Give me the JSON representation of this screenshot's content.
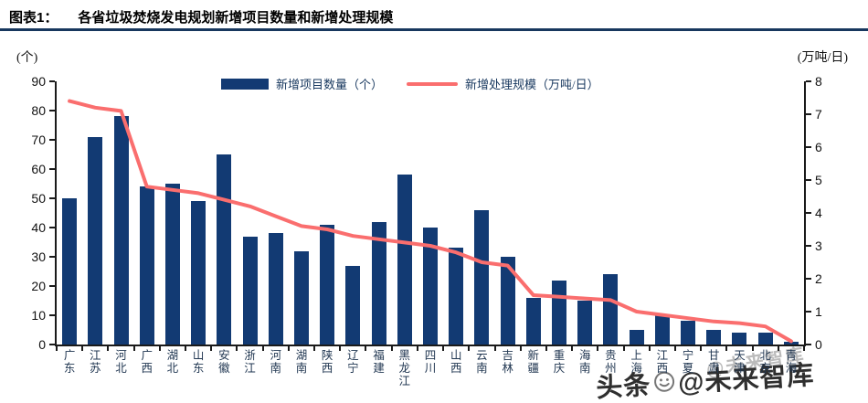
{
  "header": {
    "tag": "图表1：",
    "title": "各省垃圾焚烧发电规划新增项目数量和新增处理规模"
  },
  "axes": {
    "left_unit": "(个)",
    "right_unit": "(万吨/日)",
    "left_ticks": [
      0,
      10,
      20,
      30,
      40,
      50,
      60,
      70,
      80,
      90
    ],
    "right_ticks": [
      0,
      1,
      2,
      3,
      4,
      5,
      6,
      7,
      8
    ]
  },
  "legend": {
    "bar_label": "新增项目数量（个）",
    "line_label": "新增处理规模（万吨/日）"
  },
  "colors": {
    "bar": "#123a73",
    "line": "#fa6e6e",
    "navy_rule": "#17375e"
  },
  "watermark": {
    "ghost": "@未来智库",
    "main_left": "头条",
    "main_right": "@未来智库",
    "emoji": "smiley-face"
  },
  "chart_data": {
    "type": "bar",
    "title": "各省垃圾焚烧发电规划新增项目数量和新增处理规模",
    "categories": [
      "广东",
      "江苏",
      "河北",
      "广西",
      "湖北",
      "山东",
      "安徽",
      "浙江",
      "河南",
      "湖南",
      "陕西",
      "辽宁",
      "福建",
      "黑龙江",
      "四川",
      "山西",
      "云南",
      "吉林",
      "新疆",
      "重庆",
      "海南",
      "贵州",
      "上海",
      "江西",
      "宁夏",
      "甘肃",
      "天津",
      "北京",
      "青海"
    ],
    "series": [
      {
        "name": "新增项目数量（个）",
        "type": "bar",
        "axis": "left",
        "values": [
          50,
          71,
          78,
          54,
          55,
          49,
          65,
          37,
          38,
          32,
          41,
          27,
          42,
          58,
          40,
          33,
          46,
          30,
          16,
          22,
          15,
          24,
          5,
          10,
          8,
          5,
          4,
          4,
          1
        ]
      },
      {
        "name": "新增处理规模（万吨/日）",
        "type": "line",
        "axis": "right",
        "values": [
          7.4,
          7.2,
          7.1,
          4.8,
          4.7,
          4.6,
          4.4,
          4.2,
          3.9,
          3.6,
          3.5,
          3.3,
          3.2,
          3.1,
          3.0,
          2.8,
          2.5,
          2.4,
          1.5,
          1.45,
          1.4,
          1.35,
          1.0,
          0.9,
          0.8,
          0.7,
          0.65,
          0.55,
          0.1
        ]
      }
    ],
    "xlabel": "",
    "ylabel_left": "(个)",
    "ylabel_right": "(万吨/日)",
    "left_ylim": [
      0,
      90
    ],
    "right_ylim": [
      0,
      8
    ],
    "grid": false,
    "legend_position": "top-center"
  }
}
